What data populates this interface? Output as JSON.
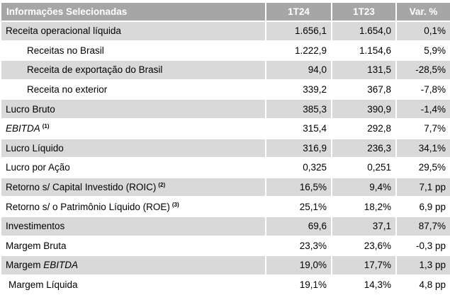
{
  "header": {
    "label": "Informações Selecionadas",
    "col1": "1T24",
    "col2": "1T23",
    "col3": "Var. %"
  },
  "rows": [
    {
      "pre": "Receita operacional líquida",
      "it": "",
      "post": "",
      "sup": "",
      "v1": "1.656,1",
      "v2": "1.654,0",
      "v3": "0,1%"
    },
    {
      "pre": "Receitas no Brasil",
      "it": "",
      "post": "",
      "sup": "",
      "v1": "1.222,9",
      "v2": "1.154,6",
      "v3": "5,9%"
    },
    {
      "pre": "Receita de exportação do Brasil",
      "it": "",
      "post": "",
      "sup": "",
      "v1": "94,0",
      "v2": "131,5",
      "v3": "-28,5%"
    },
    {
      "pre": "Receita no exterior",
      "it": "",
      "post": "",
      "sup": "",
      "v1": "339,2",
      "v2": "367,8",
      "v3": "-7,8%"
    },
    {
      "pre": "Lucro Bruto",
      "it": "",
      "post": "",
      "sup": "",
      "v1": "385,3",
      "v2": "390,9",
      "v3": "-1,4%"
    },
    {
      "pre": "",
      "it": "EBITDA",
      "post": "",
      "sup": "(1)",
      "v1": "315,4",
      "v2": "292,8",
      "v3": "7,7%"
    },
    {
      "pre": "Lucro Líquido",
      "it": "",
      "post": "",
      "sup": "",
      "v1": "316,9",
      "v2": "236,3",
      "v3": "34,1%"
    },
    {
      "pre": "Lucro por Ação",
      "it": "",
      "post": "",
      "sup": "",
      "v1": "0,325",
      "v2": "0,251",
      "v3": "29,5%"
    },
    {
      "pre": "Retorno s/ Capital Investido (ROIC)",
      "it": "",
      "post": "",
      "sup": "(2)",
      "v1": "16,5%",
      "v2": "9,4%",
      "v3": "7,1 pp"
    },
    {
      "pre": "Retorno s/ o Patrimônio Líquido (ROE)",
      "it": "",
      "post": "",
      "sup": "(3)",
      "v1": "25,1%",
      "v2": "18,2%",
      "v3": "6,9 pp"
    },
    {
      "pre": "Investimentos",
      "it": "",
      "post": "",
      "sup": "",
      "v1": "69,6",
      "v2": "37,1",
      "v3": "87,7%"
    },
    {
      "pre": "Margem Bruta",
      "it": "",
      "post": "",
      "sup": "",
      "v1": "23,3%",
      "v2": "23,6%",
      "v3": "-0,3 pp"
    },
    {
      "pre": "Margem ",
      "it": "EBITDA",
      "post": "",
      "sup": "",
      "v1": "19,0%",
      "v2": "17,7%",
      "v3": "1,3 pp"
    },
    {
      "pre": "Margem Líquida",
      "it": "",
      "post": "",
      "sup": "",
      "v1": "19,1%",
      "v2": "14,3%",
      "v3": "4,8 pp"
    }
  ],
  "colors": {
    "header_bg": "#a6a6a6",
    "header_text": "#ffffff",
    "shade": "#d9d9d9"
  }
}
